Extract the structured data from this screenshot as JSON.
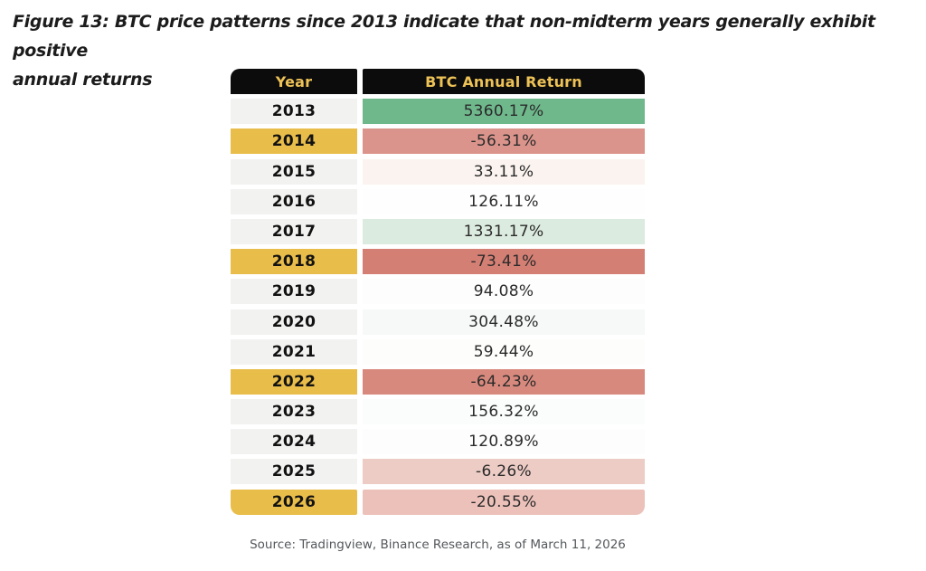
{
  "figure": {
    "title_line1": "Figure 13: BTC price patterns since 2013 indicate that non-midterm years generally exhibit positive",
    "title_line2": "annual returns",
    "source": "Source: Tradingview, Binance Research, as of March 11, 2026"
  },
  "colors": {
    "header_bg": "#0c0c0c",
    "header_text": "#edc257",
    "year_default_bg": "#f2f2f1",
    "year_midterm_bg": "#e9bd4a",
    "positive_strong_green": "#6fb88c",
    "positive_light_green": "#dcebdf",
    "negative_strong_red": "#d47f74",
    "negative_light_pink": "#ecc1ba"
  },
  "table": {
    "headers": {
      "year": "Year",
      "value": "BTC Annual Return"
    },
    "rows": [
      {
        "year": "2013",
        "value": "5360.17%",
        "year_bg": "#f2f2f1",
        "value_bg": "#6fb88c"
      },
      {
        "year": "2014",
        "value": "-56.31%",
        "year_bg": "#e9bd4a",
        "value_bg": "#db948b"
      },
      {
        "year": "2015",
        "value": "33.11%",
        "year_bg": "#f2f2f1",
        "value_bg": "#fbf3f0"
      },
      {
        "year": "2016",
        "value": "126.11%",
        "year_bg": "#f2f2f1",
        "value_bg": "#fdfefd"
      },
      {
        "year": "2017",
        "value": "1331.17%",
        "year_bg": "#f2f2f1",
        "value_bg": "#dcebdf"
      },
      {
        "year": "2018",
        "value": "-73.41%",
        "year_bg": "#e9bd4a",
        "value_bg": "#d47f74"
      },
      {
        "year": "2019",
        "value": "94.08%",
        "year_bg": "#f2f2f1",
        "value_bg": "#fcfdfc"
      },
      {
        "year": "2020",
        "value": "304.48%",
        "year_bg": "#f2f2f1",
        "value_bg": "#f6f9f7"
      },
      {
        "year": "2021",
        "value": "59.44%",
        "year_bg": "#f2f2f1",
        "value_bg": "#fdfdfc"
      },
      {
        "year": "2022",
        "value": "-64.23%",
        "year_bg": "#e9bd4a",
        "value_bg": "#d8897d"
      },
      {
        "year": "2023",
        "value": "156.32%",
        "year_bg": "#f2f2f1",
        "value_bg": "#fbfdfc"
      },
      {
        "year": "2024",
        "value": "120.89%",
        "year_bg": "#f2f2f1",
        "value_bg": "#fdfdfd"
      },
      {
        "year": "2025",
        "value": "-6.26%",
        "year_bg": "#f2f2f1",
        "value_bg": "#edccc5"
      },
      {
        "year": "2026",
        "value": "-20.55%",
        "year_bg": "#e9bd4a",
        "value_bg": "#ecc1ba"
      }
    ]
  },
  "chart_data": {
    "type": "table",
    "title": "Figure 13: BTC price patterns since 2013 indicate that non-midterm years generally exhibit positive annual returns",
    "columns": [
      "Year",
      "BTC Annual Return"
    ],
    "categories": [
      "2013",
      "2014",
      "2015",
      "2016",
      "2017",
      "2018",
      "2019",
      "2020",
      "2021",
      "2022",
      "2023",
      "2024",
      "2025",
      "2026"
    ],
    "values": [
      5360.17,
      -56.31,
      33.11,
      126.11,
      1331.17,
      -73.41,
      94.08,
      304.48,
      59.44,
      -64.23,
      156.32,
      120.89,
      -6.26,
      -20.55
    ],
    "units": "%",
    "midterm_years_highlighted": [
      "2014",
      "2018",
      "2022",
      "2026"
    ],
    "source": "Source: Tradingview, Binance Research, as of March 11, 2026"
  }
}
